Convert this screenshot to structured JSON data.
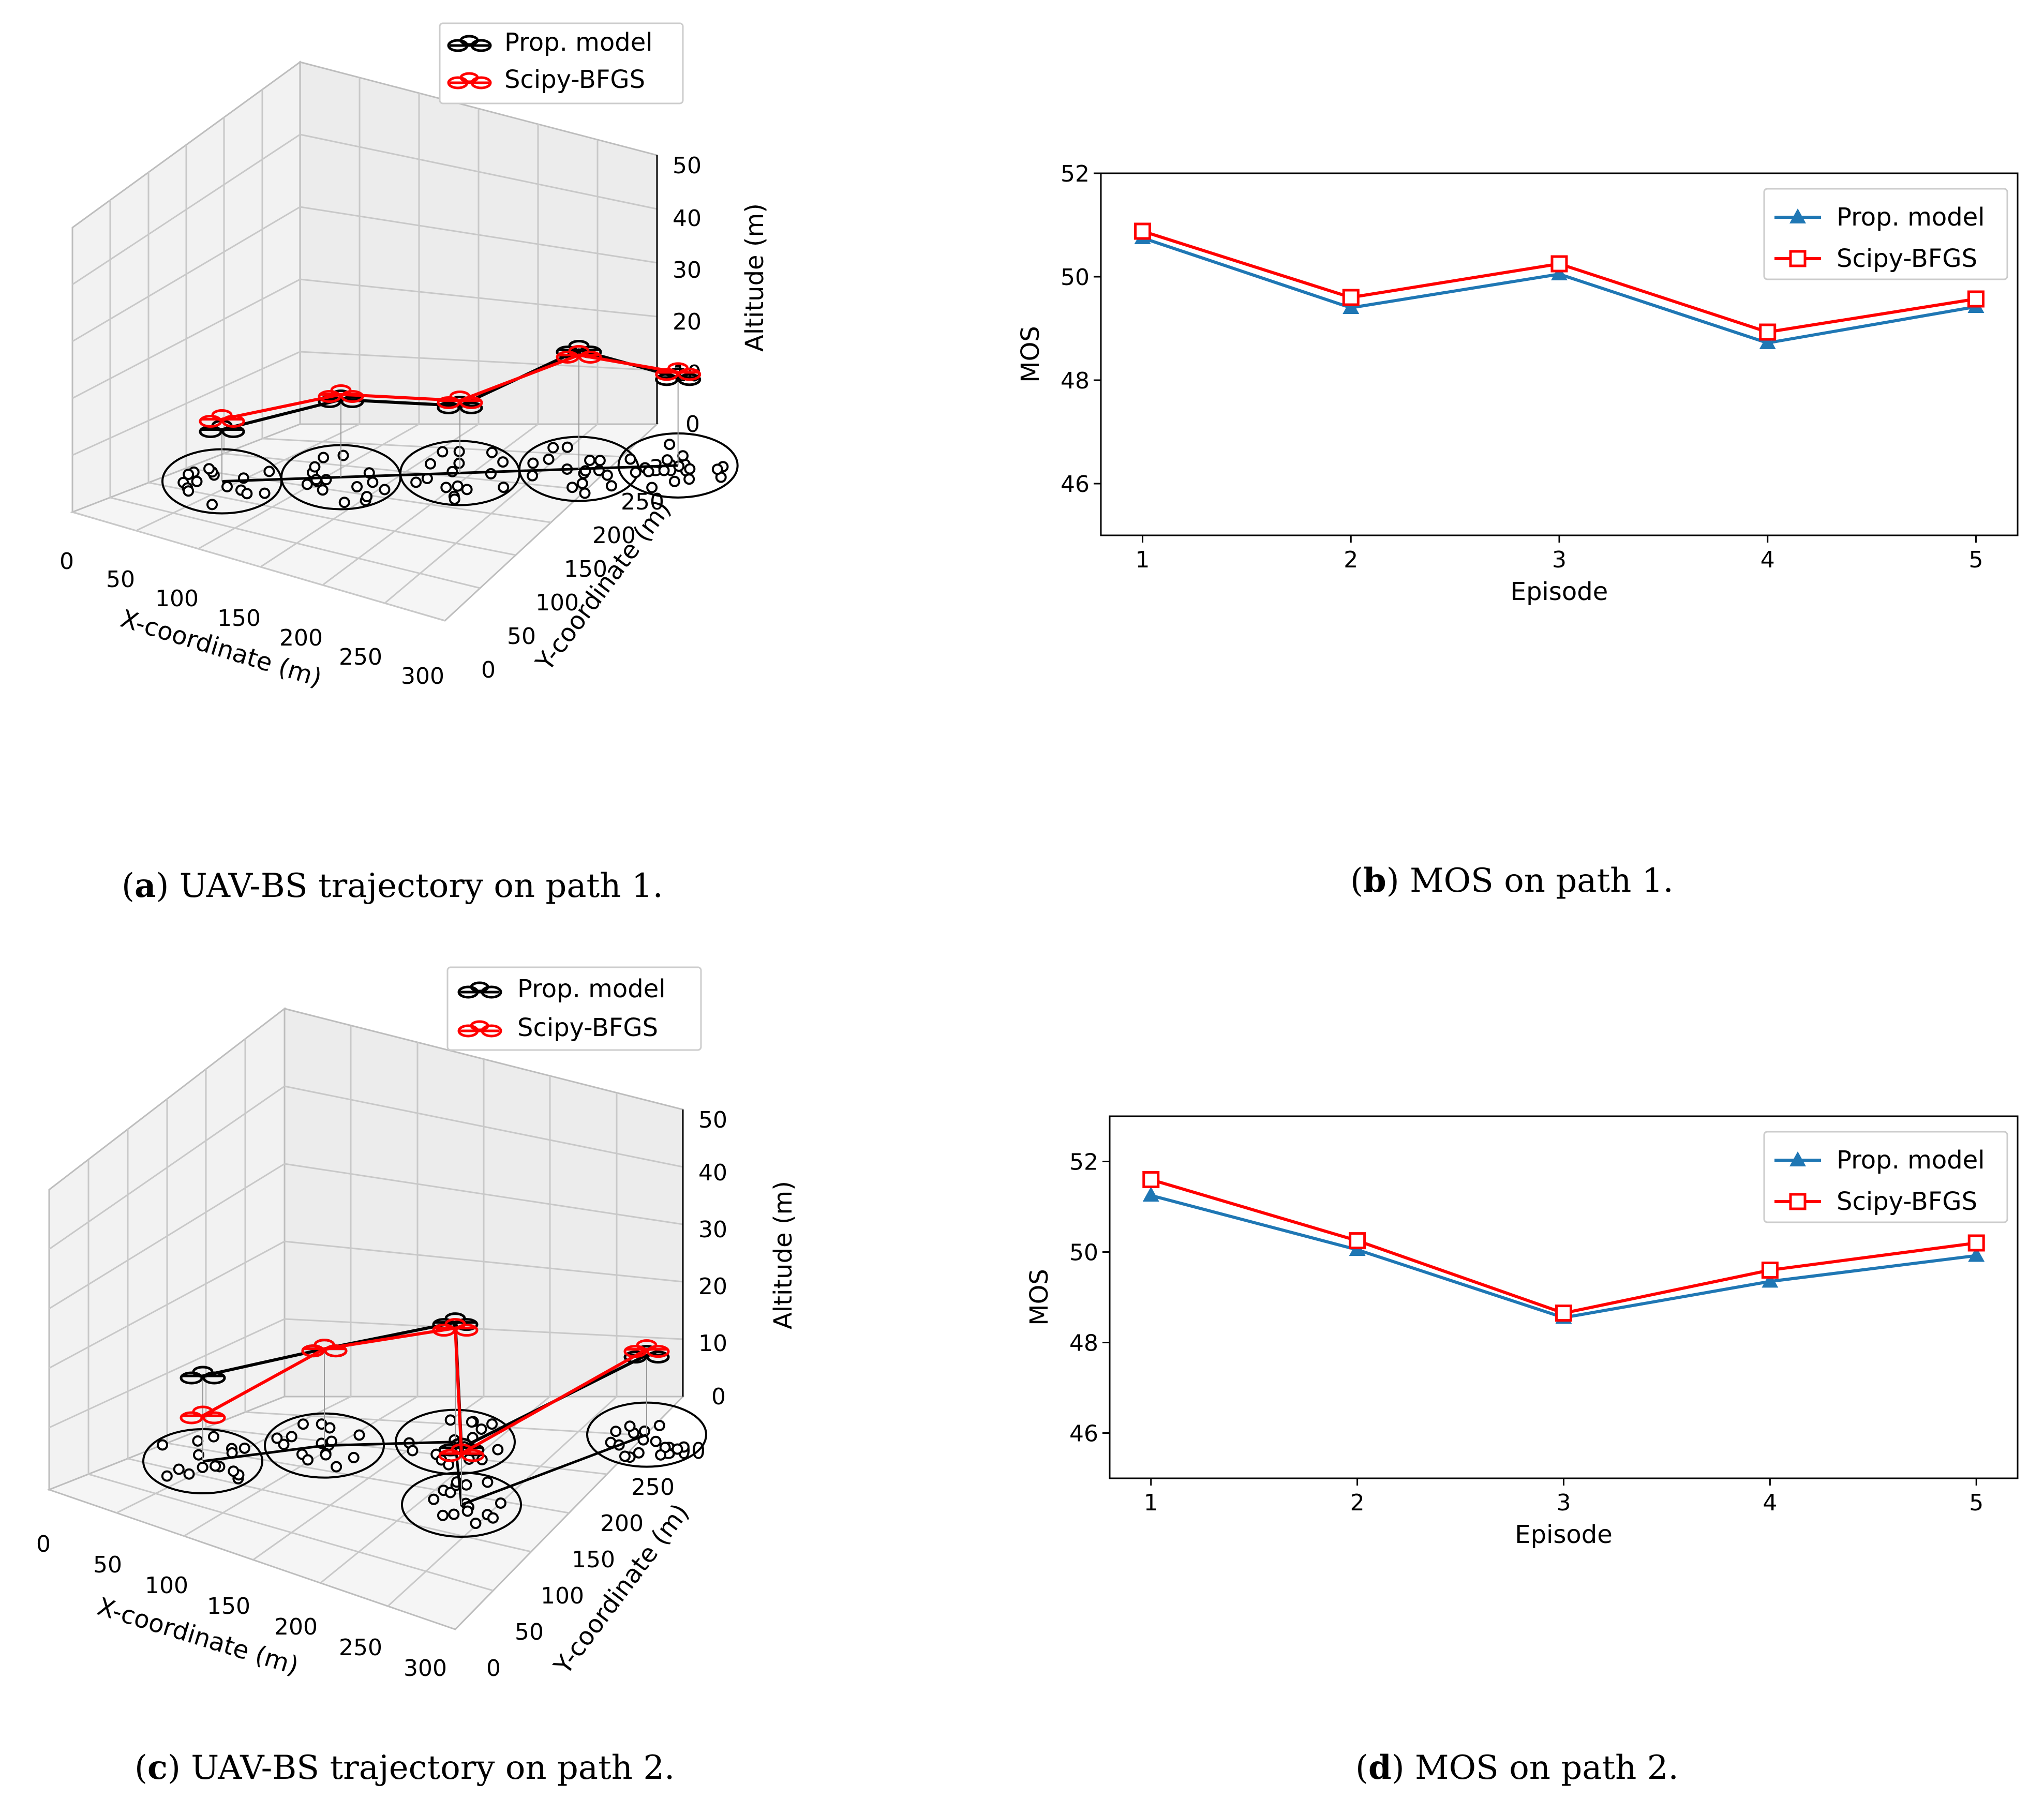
{
  "captions": {
    "a": {
      "letter": "a",
      "text": " UAV-BS trajectory on path 1."
    },
    "b": {
      "letter": "b",
      "text": " MOS on path 1."
    },
    "c": {
      "letter": "c",
      "text": " UAV-BS trajectory on path 2."
    },
    "d": {
      "letter": "d",
      "text": " MOS on path 2."
    }
  },
  "colors": {
    "prop": "#1f77b4",
    "scipy": "#ff0000",
    "black": "#000000"
  },
  "chart_data": [
    {
      "id": "a",
      "type": "scatter3d",
      "title": "",
      "xlabel": "X-coordinate (m)",
      "ylabel": "Y-coordinate (m)",
      "zlabel": "Altitude (m)",
      "xticks": [
        "0",
        "50",
        "100",
        "150",
        "200",
        "250",
        "300"
      ],
      "yticks": [
        "0",
        "50",
        "100",
        "150",
        "200",
        "250",
        "300"
      ],
      "zticks": [
        "0",
        "10",
        "20",
        "30",
        "40",
        "50"
      ],
      "legend": [
        "Prop. model",
        "Scipy-BFGS"
      ],
      "series": [
        {
          "name": "Prop. model",
          "color": "#000000",
          "x": [
            30,
            90,
            150,
            210,
            260
          ],
          "y": [
            60,
            120,
            180,
            240,
            290
          ],
          "z": [
            10,
            15,
            13,
            23,
            17
          ]
        },
        {
          "name": "Scipy-BFGS",
          "color": "#ff0000",
          "x": [
            30,
            90,
            150,
            210,
            260
          ],
          "y": [
            60,
            120,
            180,
            240,
            290
          ],
          "z": [
            12,
            16,
            14,
            22,
            18
          ]
        }
      ]
    },
    {
      "id": "b",
      "type": "line",
      "title": "",
      "xlabel": "Episode",
      "ylabel": "MOS",
      "categories": [
        "1",
        "2",
        "3",
        "4",
        "5"
      ],
      "x": [
        1,
        2,
        3,
        4,
        5
      ],
      "ylim": [
        45,
        52
      ],
      "yticks": [
        46,
        48,
        50,
        52
      ],
      "legend_loc": "upper right",
      "series": [
        {
          "name": "Prop. model",
          "color": "#1f77b4",
          "marker": "triangle",
          "values": [
            50.75,
            49.4,
            50.05,
            48.72,
            49.42
          ]
        },
        {
          "name": "Scipy-BFGS",
          "color": "#ff0000",
          "marker": "square",
          "values": [
            50.88,
            49.6,
            50.25,
            48.93,
            49.57
          ]
        }
      ]
    },
    {
      "id": "c",
      "type": "scatter3d",
      "title": "",
      "xlabel": "X-coordinate (m)",
      "ylabel": "Y-coordinate (m)",
      "zlabel": "Altitude (m)",
      "xticks": [
        "0",
        "50",
        "100",
        "150",
        "200",
        "250",
        "300"
      ],
      "yticks": [
        "0",
        "50",
        "100",
        "150",
        "200",
        "250",
        "300"
      ],
      "zticks": [
        "0",
        "10",
        "20",
        "30",
        "40",
        "50"
      ],
      "legend": [
        "Prop. model",
        "Scipy-BFGS"
      ],
      "series": [
        {
          "name": "Prop. model",
          "color": "#000000",
          "x": [
            30,
            80,
            150,
            230,
            250
          ],
          "y": [
            60,
            130,
            190,
            120,
            280
          ],
          "z": [
            15,
            17,
            21,
            10,
            14
          ]
        },
        {
          "name": "Scipy-BFGS",
          "color": "#ff0000",
          "x": [
            30,
            80,
            150,
            230,
            250
          ],
          "y": [
            60,
            130,
            190,
            120,
            280
          ],
          "z": [
            8,
            17,
            20,
            9,
            15
          ]
        }
      ]
    },
    {
      "id": "d",
      "type": "line",
      "title": "",
      "xlabel": "Episode",
      "ylabel": "MOS",
      "categories": [
        "1",
        "2",
        "3",
        "4",
        "5"
      ],
      "x": [
        1,
        2,
        3,
        4,
        5
      ],
      "ylim": [
        45,
        53
      ],
      "yticks": [
        46,
        48,
        50,
        52
      ],
      "legend_loc": "upper right",
      "series": [
        {
          "name": "Prop. model",
          "color": "#1f77b4",
          "marker": "triangle",
          "values": [
            51.25,
            50.05,
            48.55,
            49.35,
            49.92
          ]
        },
        {
          "name": "Scipy-BFGS",
          "color": "#ff0000",
          "marker": "square",
          "values": [
            51.6,
            50.25,
            48.65,
            49.6,
            50.2
          ]
        }
      ]
    }
  ]
}
